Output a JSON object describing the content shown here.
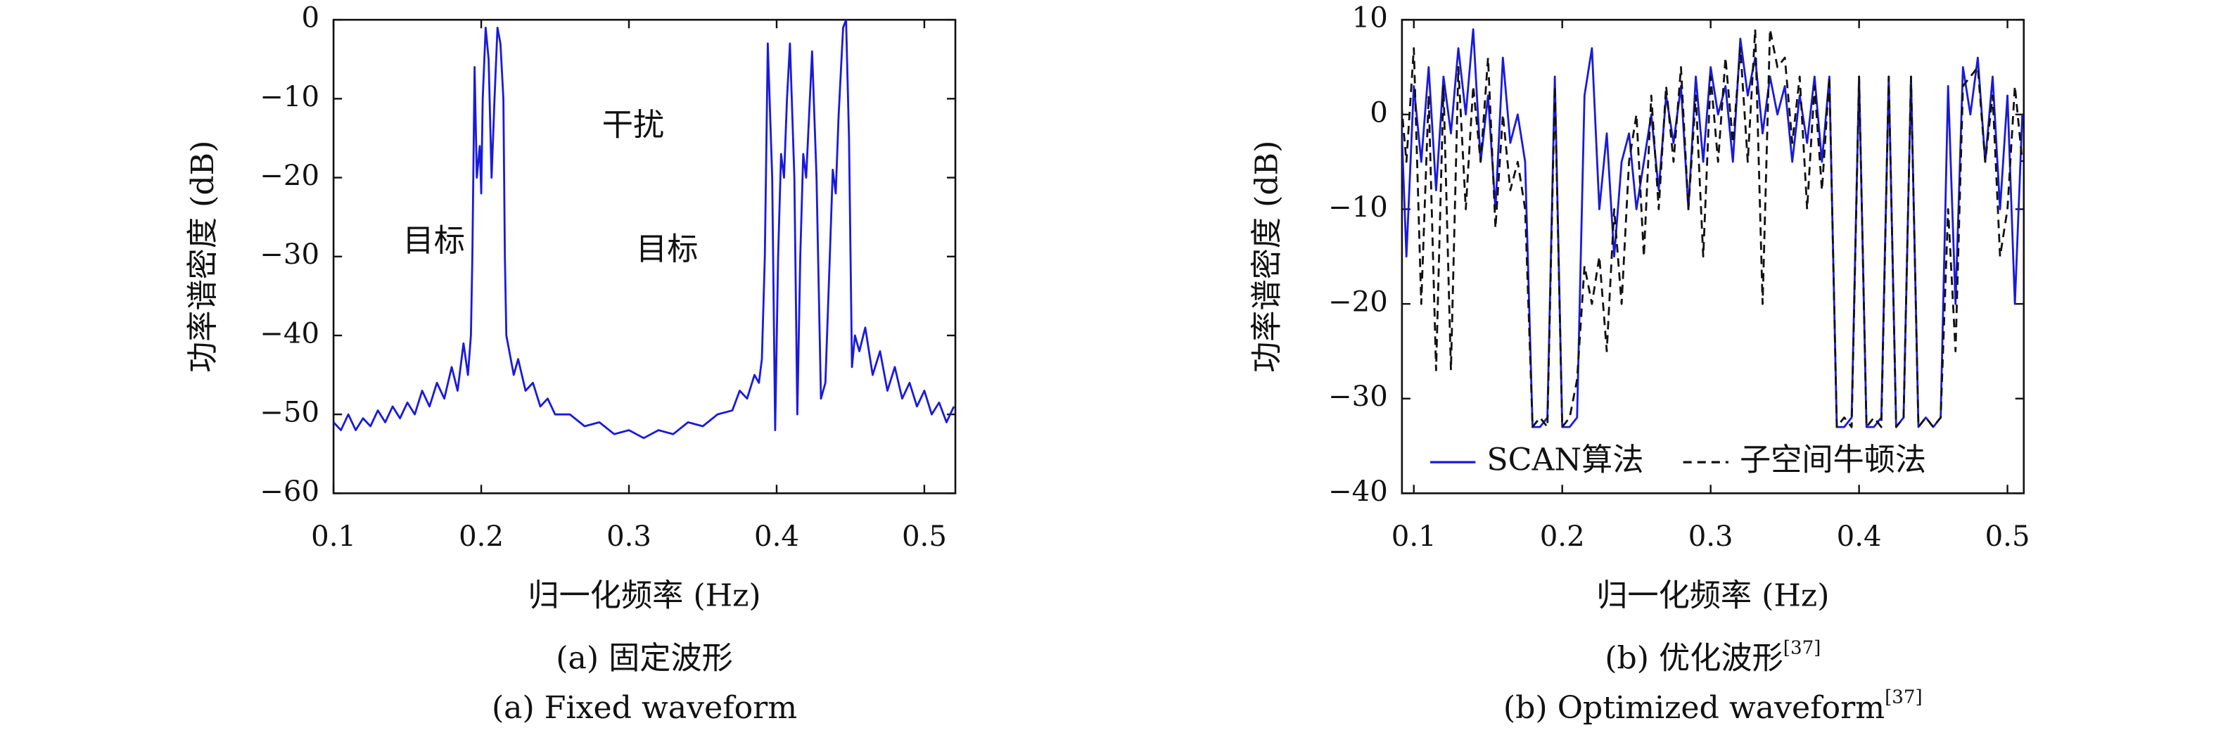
{
  "chart_data": [
    {
      "type": "line",
      "xlabel": "归一化频率 (Hz)",
      "ylabel": "功率谱密度 (dB)",
      "caption_cn": "(a) 固定波形",
      "caption_en": "(a) Fixed waveform",
      "annotations": [
        "干扰",
        "目标",
        "目标"
      ],
      "xlim": [
        0.1,
        0.521
      ],
      "ylim": [
        -60,
        0
      ],
      "xticks": [
        0.1,
        0.2,
        0.3,
        0.4,
        0.5
      ],
      "yticks": [
        0,
        {
          "value": -10,
          "label": "−10"
        },
        {
          "value": -20,
          "label": "−20"
        },
        {
          "value": -30,
          "label": "−30"
        },
        {
          "value": -40,
          "label": "−40"
        },
        {
          "value": -50,
          "label": "−50"
        },
        {
          "value": -60,
          "label": "−60"
        }
      ],
      "color": "#1a1adc",
      "x": [
        0.1,
        0.105,
        0.11,
        0.115,
        0.12,
        0.125,
        0.13,
        0.135,
        0.14,
        0.145,
        0.15,
        0.155,
        0.16,
        0.165,
        0.17,
        0.175,
        0.18,
        0.184,
        0.188,
        0.191,
        0.193,
        0.194,
        0.1955,
        0.197,
        0.199,
        0.2,
        0.201,
        0.203,
        0.205,
        0.207,
        0.209,
        0.211,
        0.213,
        0.215,
        0.216,
        0.217,
        0.219,
        0.222,
        0.225,
        0.23,
        0.235,
        0.24,
        0.245,
        0.25,
        0.26,
        0.27,
        0.28,
        0.29,
        0.3,
        0.31,
        0.32,
        0.33,
        0.34,
        0.35,
        0.36,
        0.37,
        0.375,
        0.38,
        0.385,
        0.388,
        0.39,
        0.392,
        0.394,
        0.397,
        0.399,
        0.401,
        0.403,
        0.405,
        0.407,
        0.409,
        0.412,
        0.414,
        0.416,
        0.418,
        0.42,
        0.422,
        0.424,
        0.427,
        0.43,
        0.433,
        0.436,
        0.438,
        0.44,
        0.442,
        0.445,
        0.447,
        0.449,
        0.451,
        0.453,
        0.456,
        0.46,
        0.465,
        0.47,
        0.475,
        0.48,
        0.485,
        0.49,
        0.495,
        0.5,
        0.505,
        0.51,
        0.515,
        0.52
      ],
      "values": [
        -51,
        -52,
        -50,
        -52,
        -50.5,
        -51.5,
        -49.5,
        -51,
        -49,
        -50.5,
        -48.5,
        -50,
        -47,
        -49,
        -46,
        -48,
        -44,
        -47,
        -41,
        -45,
        -40,
        -30,
        -6,
        -20,
        -16,
        -22,
        -10,
        -1,
        -5,
        -20,
        -10,
        -1,
        -3,
        -10,
        -30,
        -40,
        -42,
        -45,
        -43,
        -47,
        -46,
        -49,
        -48,
        -50,
        -50,
        -51.5,
        -51,
        -52.5,
        -52,
        -53,
        -52,
        -52.5,
        -51,
        -51.5,
        -50,
        -49.5,
        -47,
        -48,
        -45,
        -46,
        -43,
        -30,
        -3,
        -20,
        -52,
        -30,
        -17,
        -20,
        -10,
        -3,
        -20,
        -50,
        -30,
        -17,
        -20,
        -12,
        -4,
        -20,
        -48,
        -46,
        -30,
        -19,
        -22,
        -12,
        -1,
        0,
        -15,
        -44,
        -40,
        -42,
        -39,
        -45,
        -42,
        -47,
        -44,
        -48,
        -46,
        -49,
        -47,
        -50,
        -48.5,
        -51,
        -49
      ]
    },
    {
      "type": "line",
      "xlabel": "归一化频率 (Hz)",
      "ylabel": "功率谱密度 (dB)",
      "caption_cn": "(b) 优化波形",
      "caption_cn_ref": "[37]",
      "caption_en": "(b) Optimized waveform",
      "caption_en_ref": "[37]",
      "legend": "lower left",
      "xlim": [
        0.092,
        0.511
      ],
      "ylim": [
        -40,
        10
      ],
      "xticks": [
        0.1,
        0.2,
        0.3,
        0.4,
        0.5
      ],
      "yticks": [
        10,
        0,
        {
          "value": -10,
          "label": "−10"
        },
        {
          "value": -20,
          "label": "−20"
        },
        {
          "value": -30,
          "label": "−30"
        },
        {
          "value": -40,
          "label": "−40"
        }
      ],
      "x": [
        0.09,
        0.095,
        0.1,
        0.105,
        0.11,
        0.115,
        0.12,
        0.125,
        0.13,
        0.135,
        0.14,
        0.145,
        0.15,
        0.155,
        0.16,
        0.165,
        0.17,
        0.175,
        0.18,
        0.185,
        0.19,
        0.195,
        0.2,
        0.205,
        0.21,
        0.215,
        0.22,
        0.225,
        0.23,
        0.235,
        0.24,
        0.245,
        0.25,
        0.255,
        0.26,
        0.265,
        0.27,
        0.275,
        0.28,
        0.285,
        0.29,
        0.295,
        0.3,
        0.305,
        0.31,
        0.315,
        0.32,
        0.325,
        0.33,
        0.335,
        0.34,
        0.345,
        0.35,
        0.355,
        0.36,
        0.365,
        0.37,
        0.375,
        0.38,
        0.385,
        0.39,
        0.395,
        0.4,
        0.405,
        0.41,
        0.415,
        0.42,
        0.425,
        0.43,
        0.435,
        0.44,
        0.445,
        0.45,
        0.455,
        0.46,
        0.465,
        0.47,
        0.475,
        0.48,
        0.485,
        0.49,
        0.495,
        0.5,
        0.505,
        0.51
      ],
      "series": [
        {
          "name": "SCAN算法",
          "color": "#1a1adc",
          "dash": false,
          "values": [
            6,
            -15,
            3,
            -5,
            5,
            -8,
            4,
            -2,
            7,
            0,
            9,
            -5,
            2,
            -10,
            6,
            -3,
            0,
            -5,
            -33,
            -33,
            -32,
            4,
            -33,
            -33,
            -32,
            2,
            7,
            -10,
            -2,
            -15,
            -5,
            -2,
            -10,
            -5,
            0,
            -8,
            2,
            -3,
            3,
            -10,
            4,
            -5,
            5,
            0,
            3,
            -5,
            8,
            2,
            6,
            -2,
            4,
            0,
            3,
            -5,
            2,
            -3,
            4,
            -5,
            4,
            -33,
            -33,
            -32,
            4,
            -33,
            -33,
            -32,
            4,
            -33,
            -32,
            4,
            -33,
            -32,
            -33,
            -32,
            3,
            -20,
            5,
            0,
            6,
            -5,
            4,
            -10,
            2,
            -20,
            0
          ]
        },
        {
          "name": "子空间牛顿法",
          "color": "#111111",
          "dash": true,
          "values": [
            4,
            -5,
            7,
            -20,
            2,
            -27,
            3,
            -27,
            5,
            -10,
            3,
            -5,
            6,
            -12,
            0,
            -8,
            -5,
            -10,
            -33,
            -32,
            -33,
            3,
            -33,
            -32,
            -28,
            -16,
            -20,
            -15,
            -25,
            -10,
            -20,
            -5,
            0,
            -15,
            2,
            -10,
            3,
            -5,
            5,
            -10,
            2,
            -15,
            4,
            -5,
            6,
            -3,
            7,
            -5,
            9,
            -20,
            9,
            5,
            6,
            -3,
            4,
            -10,
            3,
            -8,
            4,
            -33,
            -32,
            -33,
            4,
            -33,
            -32,
            -33,
            4,
            -33,
            -32,
            4,
            -33,
            -32,
            -33,
            -32,
            -10,
            -25,
            3,
            4,
            5,
            -5,
            2,
            -15,
            -10,
            3,
            -5
          ]
        }
      ]
    }
  ]
}
